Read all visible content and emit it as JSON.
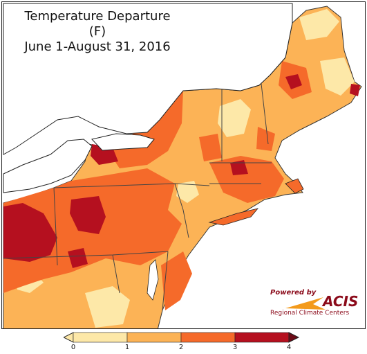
{
  "title": {
    "line1": "Temperature Departure (F)",
    "line2": "June 1-August 31, 2016"
  },
  "legend": {
    "ticks": [
      "0",
      "1",
      "2",
      "3",
      "4"
    ],
    "colors": [
      "#fde8a8",
      "#fcb356",
      "#f56a2a",
      "#b5101f"
    ],
    "arrow_low_color": "#fde8a8",
    "arrow_high_color": "#6b0a16"
  },
  "credit": {
    "powered_by": "Powered by",
    "acis": "ACIS",
    "rcc": "Regional Climate Centers"
  },
  "colors": {
    "water": "#ffffff",
    "land_base": "#fcb356",
    "light": "#fde8a8",
    "mid": "#f56a2a",
    "high": "#b5101f",
    "borders": "#444444"
  }
}
